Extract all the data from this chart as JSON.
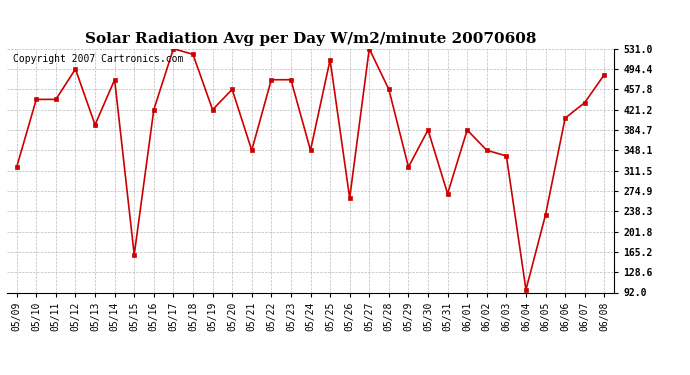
{
  "title": "Solar Radiation Avg per Day W/m2/minute 20070608",
  "copyright": "Copyright 2007 Cartronics.com",
  "dates": [
    "05/09",
    "05/10",
    "05/11",
    "05/12",
    "05/13",
    "05/14",
    "05/15",
    "05/16",
    "05/17",
    "05/18",
    "05/19",
    "05/20",
    "05/21",
    "05/22",
    "05/23",
    "05/24",
    "05/25",
    "05/26",
    "05/27",
    "05/28",
    "05/29",
    "05/30",
    "05/31",
    "06/01",
    "06/02",
    "06/03",
    "06/04",
    "06/05",
    "06/06",
    "06/07",
    "06/08"
  ],
  "values": [
    318.0,
    439.8,
    439.8,
    494.4,
    394.0,
    475.2,
    160.0,
    421.2,
    531.0,
    521.0,
    421.2,
    457.8,
    348.1,
    475.2,
    475.2,
    348.1,
    511.0,
    262.0,
    531.0,
    457.8,
    318.0,
    384.7,
    270.0,
    384.7,
    348.1,
    338.0,
    97.0,
    232.0,
    406.0,
    434.0,
    484.4
  ],
  "line_color": "#cc0000",
  "marker": "s",
  "markersize": 3,
  "bg_color": "#ffffff",
  "grid_color": "#aaaaaa",
  "yticks": [
    92.0,
    128.6,
    165.2,
    201.8,
    238.3,
    274.9,
    311.5,
    348.1,
    384.7,
    421.2,
    457.8,
    494.4,
    531.0
  ],
  "title_fontsize": 11,
  "copyright_fontsize": 7,
  "tick_fontsize": 7,
  "ymin": 92.0,
  "ymax": 531.0
}
